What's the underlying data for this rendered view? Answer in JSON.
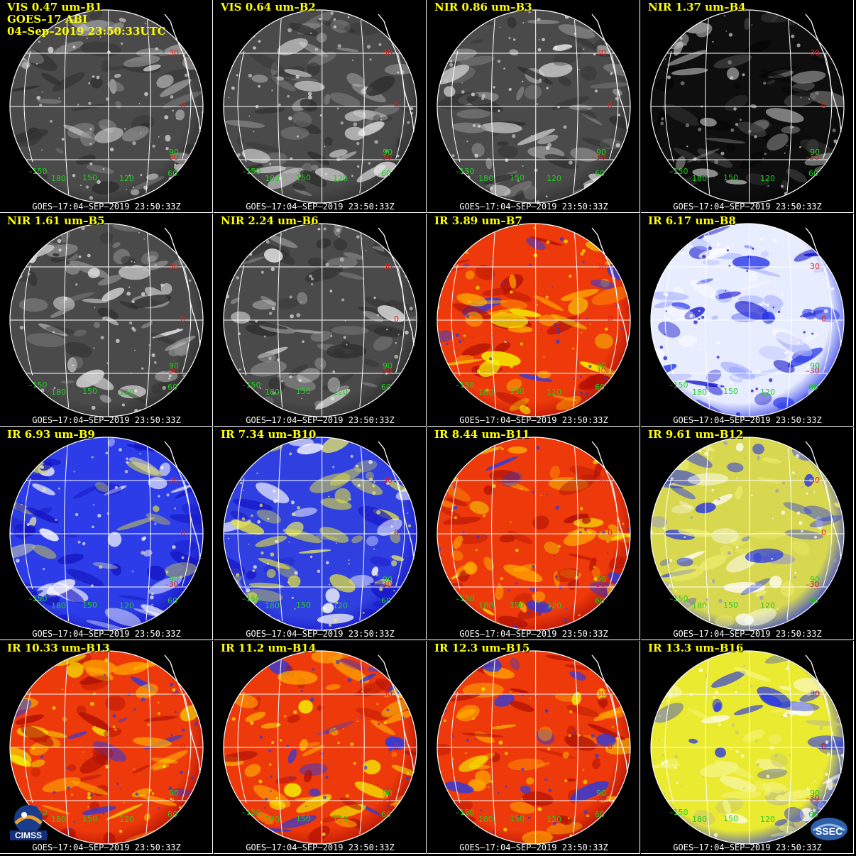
{
  "panels": [
    {
      "title": "VIS 0.47 um–B1",
      "scheme": "gray",
      "info": "GOES–17 ABI\n04–Sep–2019 23:50:33UTC"
    },
    {
      "title": "VIS 0.64 um–B2",
      "scheme": "gray"
    },
    {
      "title": "NIR 0.86 um–B3",
      "scheme": "gray"
    },
    {
      "title": "NIR 1.37 um–B4",
      "scheme": "dark"
    },
    {
      "title": "NIR 1.61 um–B5",
      "scheme": "gray"
    },
    {
      "title": "NIR 2.24 um–B6",
      "scheme": "gray"
    },
    {
      "title": "IR 3.89 um–B7",
      "scheme": "hot"
    },
    {
      "title": "IR 6.17 um–B8",
      "scheme": "wv-white"
    },
    {
      "title": "IR 6.93 um–B9",
      "scheme": "wv-blue"
    },
    {
      "title": "IR 7.34 um–B10",
      "scheme": "wv-yellow"
    },
    {
      "title": "IR 8.44 um–B11",
      "scheme": "hot"
    },
    {
      "title": "IR 9.61 um–B12",
      "scheme": "ozone"
    },
    {
      "title": "IR 10.33 um–B13",
      "scheme": "hot"
    },
    {
      "title": "IR 11.2 um–B14",
      "scheme": "hot"
    },
    {
      "title": "IR 12.3 um–B15",
      "scheme": "hot"
    },
    {
      "title": "IR 13.3 um–B16",
      "scheme": "co2"
    }
  ],
  "footer": "GOES–17:04–SEP–2019 23:50:33Z",
  "lat_labels": [
    "30",
    "0",
    "–30"
  ],
  "lon_labels": [
    "–150",
    "180",
    "150",
    "120",
    "60",
    "90"
  ],
  "logos": {
    "left": "CIMSS",
    "right": "SSEC"
  },
  "colors": {
    "title": "#ffff00",
    "lat": "#dd2222",
    "lon": "#22cc22",
    "grid": "#ffffff"
  }
}
